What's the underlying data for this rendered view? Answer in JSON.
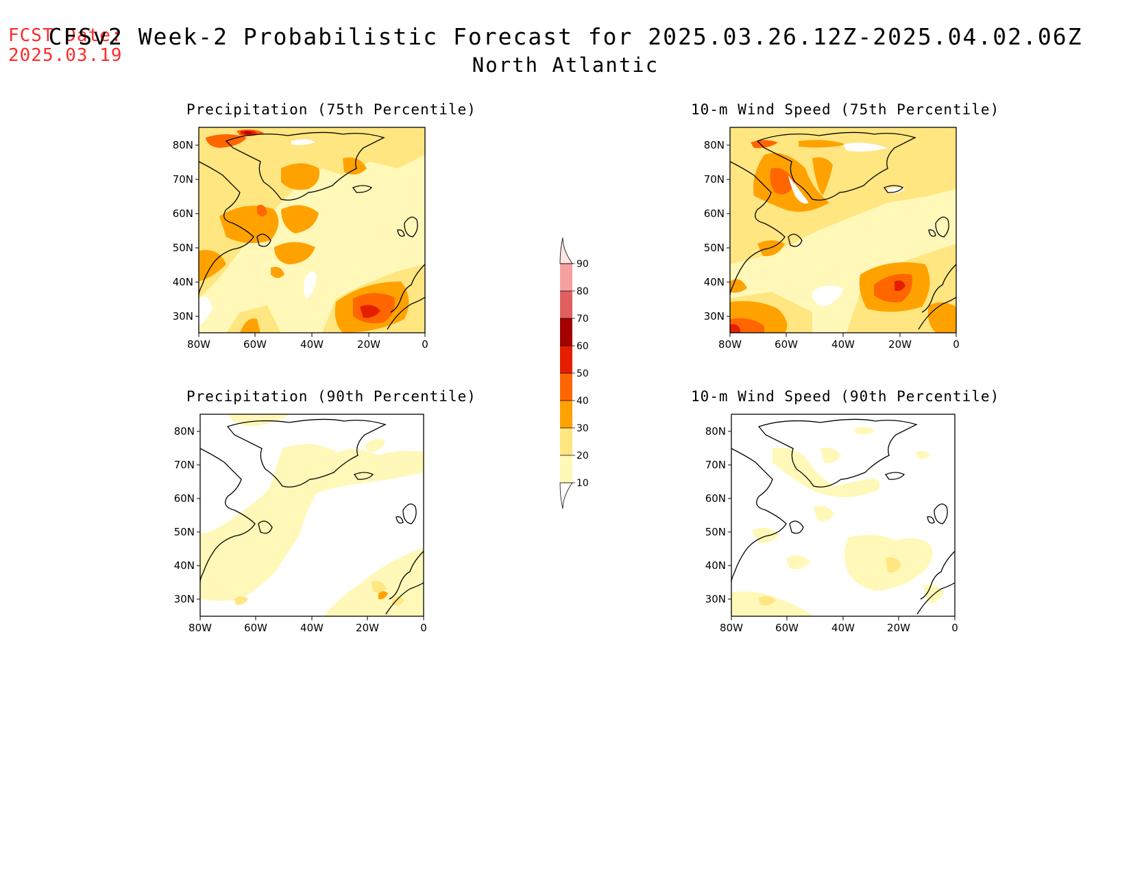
{
  "header": {
    "fcst_label": "FCST Date:",
    "fcst_date": "2025.03.19",
    "title": "CFSv2 Week-2 Probabilistic Forecast for 2025.03.26.12Z-2025.04.02.06Z",
    "subtitle": "North Atlantic"
  },
  "panels": [
    {
      "title": "Precipitation (75th Percentile)"
    },
    {
      "title": "10-m Wind Speed (75th Percentile)"
    },
    {
      "title": "Precipitation (90th Percentile)"
    },
    {
      "title": "10-m Wind Speed (90th Percentile)"
    }
  ],
  "axes": {
    "lat_labels": [
      "80N",
      "70N",
      "60N",
      "50N",
      "40N",
      "30N"
    ],
    "lon_labels": [
      "80W",
      "60W",
      "40W",
      "20W",
      "0"
    ]
  },
  "colorbar": {
    "levels": [
      "10",
      "20",
      "30",
      "40",
      "50",
      "60",
      "70",
      "80",
      "90"
    ],
    "colors": [
      "#fff8b8",
      "#ffe680",
      "#ffa200",
      "#ff6600",
      "#e61e00",
      "#a50000",
      "#e06060",
      "#f5a0a0",
      "#ffe4e4"
    ]
  }
}
